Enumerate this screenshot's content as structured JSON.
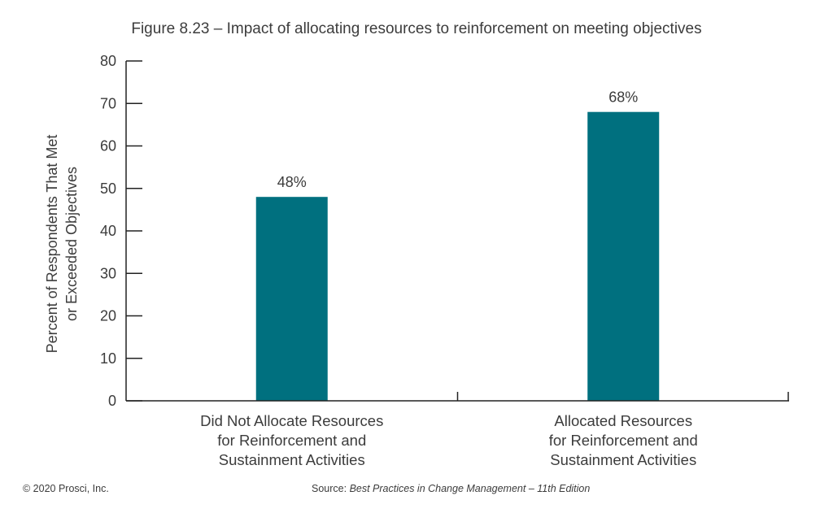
{
  "chart_data": {
    "type": "bar",
    "title": "Figure 8.23 – Impact of allocating resources to reinforcement on meeting objectives",
    "categories": [
      [
        "Did Not Allocate Resources",
        "for Reinforcement and",
        "Sustainment Activities"
      ],
      [
        "Allocated Resources",
        "for Reinforcement and",
        "Sustainment Activities"
      ]
    ],
    "values": [
      48,
      68
    ],
    "value_labels": [
      "48%",
      "68%"
    ],
    "ylabel": [
      "Percent of Respondents That Met",
      "or Exceeded Objectives"
    ],
    "xlabel": "",
    "ylim": [
      0,
      80
    ],
    "yticks": [
      0,
      10,
      20,
      30,
      40,
      50,
      60,
      70,
      80
    ],
    "grid": false,
    "legend": "none",
    "bar_color": "#00707f"
  },
  "footer": {
    "copyright": "© 2020 Prosci, Inc.",
    "source_prefix": "Source: ",
    "source_title": "Best Practices in Change Management – 11th Edition"
  }
}
